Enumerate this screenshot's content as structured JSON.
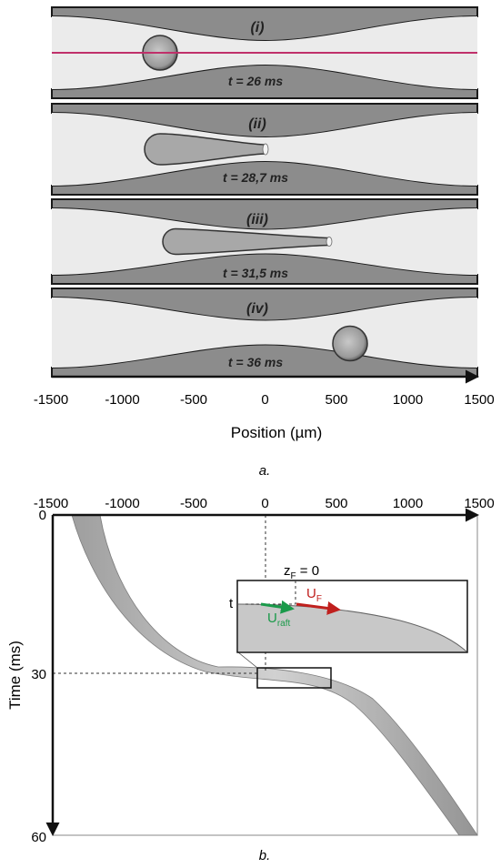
{
  "panel_a": {
    "frames": [
      {
        "label": "(i)",
        "time": "t = 26 ms"
      },
      {
        "label": "(ii)",
        "time": "t = 28,7 ms"
      },
      {
        "label": "(iii)",
        "time": "t = 31,5 ms"
      },
      {
        "label": "(iv)",
        "time": "t = 36 ms"
      }
    ],
    "x_ticks": [
      "-1500",
      "-1000",
      "-500",
      "0",
      "500",
      "1000",
      "1500"
    ],
    "x_label": "Position (µm)",
    "caption": "a."
  },
  "panel_b": {
    "x_ticks": [
      "-1500",
      "-1000",
      "-500",
      "0",
      "500",
      "1000",
      "1500"
    ],
    "y_ticks": [
      "0",
      "30",
      "60"
    ],
    "y_label": "Time (ms)",
    "inset": {
      "zf_label": "z",
      "zf_sub": "F",
      "zf_eq": " = 0",
      "t_label": "t",
      "uf_label": "U",
      "uf_sub": "F",
      "uraft_label": "U",
      "uraft_sub": "raft"
    },
    "caption": "b."
  },
  "colors": {
    "accent_line": "#c0306a",
    "uf_arrow": "#c0201e",
    "uraft_arrow": "#1a9a4a"
  }
}
